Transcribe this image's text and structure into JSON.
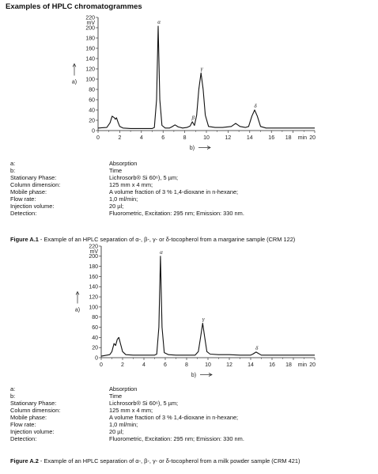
{
  "heading": "Examples of HPLC chromatogrammes",
  "chart_data": [
    {
      "type": "line",
      "ylabel": "a)",
      "xlabel": "b)",
      "x_unit": "min",
      "y_unit": "mV",
      "xlim": [
        0,
        20
      ],
      "ylim": [
        0,
        220
      ],
      "x_ticks": [
        "0",
        "2",
        "4",
        "6",
        "8",
        "10",
        "12",
        "14",
        "16",
        "18",
        "20"
      ],
      "y_ticks": [
        "0",
        "20",
        "40",
        "60",
        "80",
        "100",
        "120",
        "140",
        "160",
        "180",
        "200",
        "220"
      ],
      "series": [
        {
          "x": [
            0,
            0.8,
            1.1,
            1.3,
            1.5,
            1.6,
            1.7,
            1.85,
            2.0,
            2.3,
            3,
            4,
            5,
            5.2,
            5.4,
            5.55,
            5.7,
            5.9,
            6.2,
            6.6,
            6.8,
            7.1,
            7.4,
            7.8,
            8.2,
            8.5,
            8.7,
            8.9,
            9.1,
            9.3,
            9.5,
            9.7,
            9.9,
            10.2,
            10.8,
            11.5,
            12.3,
            12.7,
            13.1,
            13.6,
            13.9,
            14.2,
            14.45,
            14.7,
            15,
            15.5,
            20
          ],
          "y": [
            5,
            6,
            15,
            28,
            25,
            22,
            25,
            16,
            8,
            5,
            4,
            4,
            4,
            6,
            60,
            203,
            60,
            10,
            5,
            5,
            7,
            11,
            7,
            5,
            6,
            9,
            17,
            10,
            30,
            80,
            112,
            80,
            30,
            8,
            6,
            6,
            8,
            14,
            8,
            6,
            8,
            28,
            40,
            28,
            8,
            5,
            5
          ]
        }
      ],
      "peak_labels": [
        {
          "label": "α",
          "x": 5.55,
          "y": 203
        },
        {
          "label": "β",
          "x": 8.7,
          "y": 17
        },
        {
          "label": "γ",
          "x": 9.5,
          "y": 112
        },
        {
          "label": "δ",
          "x": 14.45,
          "y": 40
        }
      ]
    },
    {
      "type": "line",
      "ylabel": "a)",
      "xlabel": "b)",
      "x_unit": "min",
      "y_unit": "mV",
      "xlim": [
        0,
        20
      ],
      "ylim": [
        0,
        220
      ],
      "x_ticks": [
        "0",
        "2",
        "4",
        "6",
        "8",
        "10",
        "12",
        "14",
        "16",
        "18",
        "20"
      ],
      "y_ticks": [
        "0",
        "20",
        "40",
        "60",
        "80",
        "100",
        "120",
        "140",
        "160",
        "180",
        "200",
        "220"
      ],
      "series": [
        {
          "x": [
            0,
            0.8,
            1.0,
            1.2,
            1.35,
            1.5,
            1.65,
            1.8,
            2.0,
            2.3,
            3,
            4,
            5,
            5.2,
            5.4,
            5.55,
            5.7,
            5.9,
            6.3,
            7,
            8,
            8.8,
            9.1,
            9.3,
            9.5,
            9.7,
            9.9,
            10.2,
            11,
            12,
            13,
            14,
            14.2,
            14.5,
            15,
            16,
            18,
            20
          ],
          "y": [
            3,
            6,
            12,
            28,
            24,
            36,
            40,
            28,
            12,
            6,
            5,
            5,
            5,
            7,
            60,
            200,
            60,
            10,
            6,
            5,
            5,
            5,
            12,
            40,
            68,
            40,
            12,
            7,
            6,
            6,
            5,
            5,
            7,
            11,
            5,
            5,
            5,
            5
          ]
        }
      ],
      "peak_labels": [
        {
          "label": "α",
          "x": 5.55,
          "y": 200
        },
        {
          "label": "γ",
          "x": 9.5,
          "y": 68
        },
        {
          "label": "δ",
          "x": 14.5,
          "y": 11
        }
      ]
    }
  ],
  "legend1": {
    "rows": [
      {
        "k": "a:",
        "v": "Absorption"
      },
      {
        "k": "b:",
        "v": "Time"
      },
      {
        "k": "Stationary Phase:",
        "v": "Lichrosorb® Si 60⁶), 5 µm;"
      },
      {
        "k": "Column dimension:",
        "v": "125 mm x 4 mm;"
      },
      {
        "k": "Mobile phase:",
        "v": "A volume fraction of 3 % 1,4-dioxane in n-hexane;"
      },
      {
        "k": "Flow rate:",
        "v": "1,0 ml/min;"
      },
      {
        "k": "Injection volume:",
        "v": "20 µl;"
      },
      {
        "k": "Detection:",
        "v": "Fluorometric, Excitation: 295 nm; Emission: 330 nm."
      }
    ]
  },
  "caption1": {
    "label": "Figure A.1",
    "text": " - Example of an HPLC separation of α-, β-, γ- or δ-tocopherol from a margarine sample (CRM 122)"
  },
  "legend2": {
    "rows": [
      {
        "k": "a:",
        "v": "Absorption"
      },
      {
        "k": "b:",
        "v": "Time"
      },
      {
        "k": "Stationary Phase:",
        "v": "Lichrosorb® Si 60⁶), 5 µm;"
      },
      {
        "k": "Column dimension:",
        "v": "125 mm x 4 mm;"
      },
      {
        "k": "Mobile phase:",
        "v": "A volume fraction of 3 % 1,4-dioxane in n-hexane;"
      },
      {
        "k": "Flow rate:",
        "v": "1,0 ml/min;"
      },
      {
        "k": "Injection volume:",
        "v": "20 µl;"
      },
      {
        "k": "Detection:",
        "v": "Fluorometric, Excitation: 295 nm; Emission: 330 nm."
      }
    ]
  },
  "caption2": {
    "label": "Figure A.2",
    "text": " - Example of an HPLC separation of α-, β-, γ- or δ-tocopherol from a milk powder sample (CRM 421)"
  }
}
